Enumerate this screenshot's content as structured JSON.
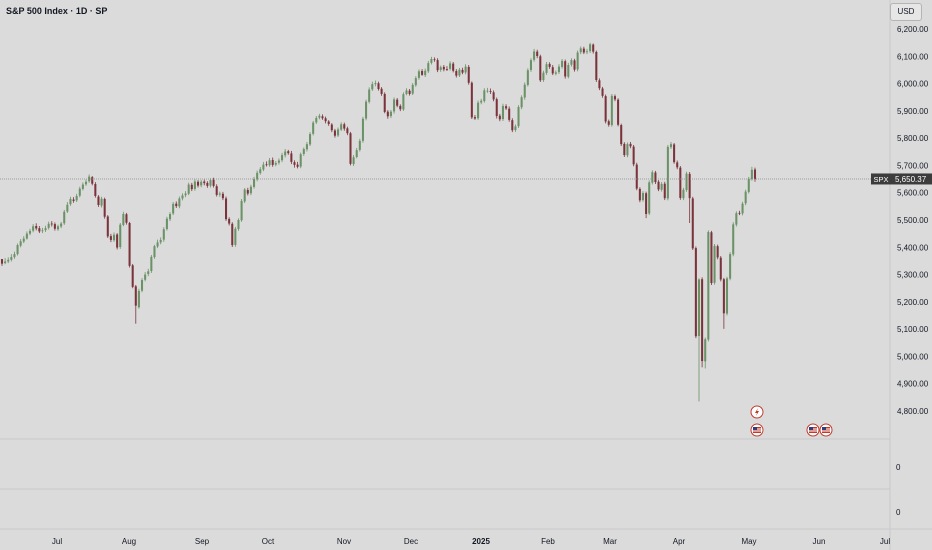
{
  "header": {
    "title": "S&P 500 Index · 1D · SP",
    "currency": "USD"
  },
  "price_tag": {
    "symbol": "SPX",
    "value": "5,650.37"
  },
  "lower_axis_labels": [
    "0",
    "0"
  ],
  "chart_data": {
    "type": "candlestick",
    "title": "S&P 500 Index · 1D · SP",
    "y_ticks": [
      "6,200.00",
      "6,100.00",
      "6,000.00",
      "5,900.00",
      "5,800.00",
      "5,700.00",
      "5,600.00",
      "5,500.00",
      "5,400.00",
      "5,300.00",
      "5,200.00",
      "5,100.00",
      "5,000.00",
      "4,900.00",
      "4,800.00"
    ],
    "y_tick_values": [
      6200,
      6100,
      6000,
      5900,
      5800,
      5700,
      5600,
      5500,
      5400,
      5300,
      5200,
      5100,
      5000,
      4900,
      4800
    ],
    "x_ticks": [
      "Jul",
      "Aug",
      "Sep",
      "Oct",
      "Nov",
      "Dec",
      "2025",
      "Feb",
      "Mar",
      "Apr",
      "May",
      "Jun",
      "Jul"
    ],
    "ylim": [
      4700,
      6270
    ],
    "last_price": 5650.37,
    "candles": [
      [
        5357,
        5340,
        5355,
        5332
      ],
      [
        5342,
        5348,
        5360,
        5338
      ],
      [
        5348,
        5354,
        5363,
        5342
      ],
      [
        5354,
        5364,
        5375,
        5348
      ],
      [
        5364,
        5375,
        5384,
        5358
      ],
      [
        5375,
        5408,
        5414,
        5370
      ],
      [
        5406,
        5422,
        5430,
        5400
      ],
      [
        5421,
        5432,
        5441,
        5415
      ],
      [
        5432,
        5450,
        5458,
        5428
      ],
      [
        5450,
        5460,
        5468,
        5444
      ],
      [
        5461,
        5477,
        5485,
        5455
      ],
      [
        5478,
        5469,
        5488,
        5462
      ],
      [
        5470,
        5458,
        5478,
        5452
      ],
      [
        5459,
        5462,
        5471,
        5452
      ],
      [
        5463,
        5470,
        5479,
        5456
      ],
      [
        5471,
        5486,
        5494,
        5465
      ],
      [
        5487,
        5484,
        5496,
        5476
      ],
      [
        5485,
        5468,
        5491,
        5461
      ],
      [
        5466,
        5477,
        5483,
        5460
      ],
      [
        5476,
        5487,
        5493,
        5470
      ],
      [
        5488,
        5530,
        5537,
        5482
      ],
      [
        5531,
        5556,
        5566,
        5526
      ],
      [
        5558,
        5577,
        5585,
        5552
      ],
      [
        5575,
        5570,
        5584,
        5563
      ],
      [
        5572,
        5588,
        5596,
        5566
      ],
      [
        5589,
        5615,
        5622,
        5583
      ],
      [
        5614,
        5630,
        5638,
        5608
      ],
      [
        5631,
        5640,
        5648,
        5625
      ],
      [
        5642,
        5659,
        5667,
        5636
      ],
      [
        5657,
        5633,
        5661,
        5627
      ],
      [
        5632,
        5588,
        5639,
        5582
      ],
      [
        5586,
        5555,
        5591,
        5548
      ],
      [
        5553,
        5578,
        5585,
        5546
      ],
      [
        5577,
        5512,
        5582,
        5505
      ],
      [
        5513,
        5440,
        5518,
        5434
      ],
      [
        5441,
        5427,
        5449,
        5419
      ],
      [
        5426,
        5446,
        5454,
        5420
      ],
      [
        5447,
        5399,
        5452,
        5392
      ],
      [
        5401,
        5483,
        5489,
        5394
      ],
      [
        5482,
        5522,
        5530,
        5477
      ],
      [
        5521,
        5490,
        5526,
        5483
      ],
      [
        5489,
        5332,
        5493,
        5326
      ],
      [
        5334,
        5255,
        5339,
        5250
      ],
      [
        5257,
        5186,
        5262,
        5120
      ],
      [
        5180,
        5240,
        5248,
        5175
      ],
      [
        5241,
        5280,
        5287,
        5235
      ],
      [
        5281,
        5300,
        5309,
        5275
      ],
      [
        5302,
        5312,
        5321,
        5294
      ],
      [
        5313,
        5365,
        5372,
        5306
      ],
      [
        5364,
        5404,
        5409,
        5358
      ],
      [
        5403,
        5418,
        5428,
        5397
      ],
      [
        5418,
        5427,
        5436,
        5411
      ],
      [
        5428,
        5466,
        5474,
        5420
      ],
      [
        5467,
        5505,
        5512,
        5461
      ],
      [
        5503,
        5522,
        5529,
        5496
      ],
      [
        5524,
        5559,
        5566,
        5518
      ],
      [
        5560,
        5551,
        5568,
        5544
      ],
      [
        5550,
        5579,
        5586,
        5543
      ],
      [
        5579,
        5590,
        5598,
        5572
      ],
      [
        5591,
        5597,
        5606,
        5584
      ],
      [
        5596,
        5630,
        5637,
        5591
      ],
      [
        5629,
        5613,
        5636,
        5606
      ],
      [
        5614,
        5641,
        5649,
        5607
      ],
      [
        5640,
        5626,
        5646,
        5619
      ],
      [
        5627,
        5640,
        5647,
        5620
      ],
      [
        5641,
        5635,
        5648,
        5627
      ],
      [
        5636,
        5625,
        5642,
        5618
      ],
      [
        5626,
        5646,
        5653,
        5619
      ],
      [
        5647,
        5625,
        5655,
        5619
      ],
      [
        5624,
        5592,
        5631,
        5586
      ],
      [
        5593,
        5597,
        5604,
        5585
      ],
      [
        5596,
        5580,
        5603,
        5573
      ],
      [
        5579,
        5503,
        5586,
        5497
      ],
      [
        5504,
        5487,
        5510,
        5480
      ],
      [
        5486,
        5408,
        5492,
        5401
      ],
      [
        5409,
        5468,
        5475,
        5402
      ],
      [
        5467,
        5500,
        5506,
        5460
      ],
      [
        5499,
        5570,
        5577,
        5493
      ],
      [
        5568,
        5612,
        5617,
        5562
      ],
      [
        5610,
        5597,
        5618,
        5590
      ],
      [
        5598,
        5622,
        5629,
        5591
      ],
      [
        5621,
        5650,
        5658,
        5615
      ],
      [
        5649,
        5673,
        5681,
        5642
      ],
      [
        5672,
        5686,
        5694,
        5666
      ],
      [
        5685,
        5703,
        5713,
        5679
      ],
      [
        5704,
        5702,
        5715,
        5696
      ],
      [
        5701,
        5719,
        5727,
        5695
      ],
      [
        5720,
        5702,
        5729,
        5695
      ],
      [
        5703,
        5709,
        5716,
        5697
      ],
      [
        5710,
        5718,
        5726,
        5703
      ],
      [
        5719,
        5738,
        5746,
        5712
      ],
      [
        5737,
        5751,
        5760,
        5729
      ],
      [
        5752,
        5745,
        5757,
        5739
      ],
      [
        5744,
        5713,
        5753,
        5705
      ],
      [
        5712,
        5702,
        5719,
        5692
      ],
      [
        5703,
        5695,
        5713,
        5689
      ],
      [
        5696,
        5741,
        5747,
        5690
      ],
      [
        5742,
        5760,
        5766,
        5735
      ],
      [
        5759,
        5778,
        5786,
        5751
      ],
      [
        5777,
        5815,
        5822,
        5771
      ],
      [
        5816,
        5857,
        5863,
        5810
      ],
      [
        5858,
        5874,
        5881,
        5852
      ],
      [
        5875,
        5882,
        5889,
        5869
      ],
      [
        5880,
        5873,
        5887,
        5867
      ],
      [
        5873,
        5862,
        5879,
        5854
      ],
      [
        5861,
        5852,
        5866,
        5845
      ],
      [
        5850,
        5829,
        5855,
        5822
      ],
      [
        5828,
        5809,
        5834,
        5802
      ],
      [
        5810,
        5832,
        5839,
        5804
      ],
      [
        5831,
        5851,
        5858,
        5826
      ],
      [
        5851,
        5835,
        5857,
        5827
      ],
      [
        5836,
        5818,
        5842,
        5811
      ],
      [
        5818,
        5706,
        5823,
        5700
      ],
      [
        5705,
        5730,
        5738,
        5698
      ],
      [
        5731,
        5756,
        5764,
        5726
      ],
      [
        5757,
        5790,
        5798,
        5751
      ],
      [
        5790,
        5871,
        5878,
        5783
      ],
      [
        5872,
        5934,
        5941,
        5865
      ],
      [
        5933,
        5978,
        5986,
        5927
      ],
      [
        5979,
        5998,
        6007,
        5973
      ],
      [
        5998,
        6002,
        6011,
        5990
      ],
      [
        6001,
        5980,
        6007,
        5974
      ],
      [
        5981,
        5962,
        5987,
        5955
      ],
      [
        5962,
        5896,
        5968,
        5891
      ],
      [
        5897,
        5880,
        5903,
        5871
      ],
      [
        5881,
        5897,
        5903,
        5874
      ],
      [
        5898,
        5942,
        5949,
        5890
      ],
      [
        5941,
        5919,
        5947,
        5913
      ],
      [
        5918,
        5906,
        5924,
        5899
      ],
      [
        5905,
        5961,
        5968,
        5900
      ],
      [
        5962,
        5975,
        5983,
        5957
      ],
      [
        5974,
        5962,
        5980,
        5956
      ],
      [
        5963,
        5995,
        6002,
        5958
      ],
      [
        5994,
        6020,
        6027,
        5988
      ],
      [
        6021,
        6045,
        6052,
        6014
      ],
      [
        6046,
        6032,
        6053,
        6028
      ],
      [
        6031,
        6047,
        6055,
        6024
      ],
      [
        6045,
        6075,
        6083,
        6039
      ],
      [
        6076,
        6090,
        6098,
        6070
      ],
      [
        6089,
        6087,
        6096,
        6080
      ],
      [
        6086,
        6049,
        6093,
        6042
      ],
      [
        6050,
        6060,
        6066,
        6043
      ],
      [
        6061,
        6052,
        6068,
        6045
      ],
      [
        6053,
        6052,
        6064,
        6046
      ],
      [
        6054,
        6074,
        6082,
        6048
      ],
      [
        6073,
        6047,
        6079,
        6041
      ],
      [
        6046,
        6029,
        6053,
        6022
      ],
      [
        6030,
        6051,
        6057,
        6024
      ],
      [
        6050,
        6040,
        6058,
        6034
      ],
      [
        6041,
        6062,
        6071,
        6034
      ],
      [
        6061,
        6003,
        6068,
        5996
      ],
      [
        6003,
        5876,
        6008,
        5870
      ],
      [
        5877,
        5872,
        5885,
        5867
      ],
      [
        5873,
        5930,
        5938,
        5867
      ],
      [
        5931,
        5937,
        5944,
        5924
      ],
      [
        5936,
        5975,
        5983,
        5930
      ],
      [
        5974,
        5974,
        5984,
        5966
      ],
      [
        5972,
        5969,
        5982,
        5962
      ],
      [
        5968,
        5942,
        5975,
        5935
      ],
      [
        5943,
        5881,
        5949,
        5872
      ],
      [
        5882,
        5869,
        5889,
        5862
      ],
      [
        5870,
        5918,
        5926,
        5863
      ],
      [
        5917,
        5909,
        5924,
        5903
      ],
      [
        5908,
        5867,
        5916,
        5860
      ],
      [
        5866,
        5829,
        5873,
        5822
      ],
      [
        5830,
        5843,
        5850,
        5823
      ],
      [
        5844,
        5914,
        5921,
        5837
      ],
      [
        5913,
        5950,
        5957,
        5906
      ],
      [
        5949,
        5996,
        6004,
        5941
      ],
      [
        5995,
        6049,
        6056,
        5989
      ],
      [
        6050,
        6086,
        6093,
        6043
      ],
      [
        6087,
        6118,
        6127,
        6080
      ],
      [
        6117,
        6101,
        6124,
        6093
      ],
      [
        6100,
        6012,
        6106,
        6006
      ],
      [
        6013,
        6040,
        6047,
        6006
      ],
      [
        6039,
        6071,
        6079,
        6032
      ],
      [
        6072,
        6061,
        6078,
        6054
      ],
      [
        6060,
        6037,
        6068,
        6031
      ],
      [
        6036,
        6041,
        6048,
        6030
      ],
      [
        6042,
        6062,
        6071,
        6035
      ],
      [
        6061,
        6083,
        6090,
        6055
      ],
      [
        6082,
        6026,
        6088,
        6018
      ],
      [
        6025,
        6068,
        6076,
        6019
      ],
      [
        6069,
        6086,
        6093,
        6062
      ],
      [
        6085,
        6051,
        6091,
        6044
      ],
      [
        6052,
        6114,
        6121,
        6045
      ],
      [
        6115,
        6129,
        6136,
        6108
      ],
      [
        6128,
        6114,
        6135,
        6108
      ],
      [
        6115,
        6118,
        6127,
        6108
      ],
      [
        6119,
        6144,
        6149,
        6112
      ],
      [
        6143,
        6117,
        6147,
        6110
      ],
      [
        6116,
        6013,
        6121,
        6006
      ],
      [
        6012,
        5983,
        6019,
        5976
      ],
      [
        5982,
        5955,
        5988,
        5948
      ],
      [
        5954,
        5861,
        5960,
        5854
      ],
      [
        5862,
        5849,
        5868,
        5842
      ],
      [
        5848,
        5955,
        5962,
        5842
      ],
      [
        5954,
        5942,
        5960,
        5935
      ],
      [
        5941,
        5849,
        5946,
        5843
      ],
      [
        5848,
        5778,
        5853,
        5771
      ],
      [
        5779,
        5738,
        5785,
        5731
      ],
      [
        5737,
        5778,
        5784,
        5730
      ],
      [
        5779,
        5770,
        5786,
        5763
      ],
      [
        5769,
        5704,
        5775,
        5697
      ],
      [
        5703,
        5615,
        5710,
        5609
      ],
      [
        5614,
        5572,
        5620,
        5565
      ],
      [
        5573,
        5599,
        5606,
        5567
      ],
      [
        5598,
        5522,
        5604,
        5507
      ],
      [
        5524,
        5638,
        5645,
        5518
      ],
      [
        5637,
        5675,
        5682,
        5630
      ],
      [
        5674,
        5639,
        5680,
        5632
      ],
      [
        5640,
        5612,
        5646,
        5606
      ],
      [
        5611,
        5632,
        5639,
        5604
      ],
      [
        5633,
        5580,
        5640,
        5573
      ],
      [
        5579,
        5768,
        5775,
        5572
      ],
      [
        5767,
        5778,
        5786,
        5760
      ],
      [
        5777,
        5712,
        5782,
        5706
      ],
      [
        5711,
        5693,
        5718,
        5686
      ],
      [
        5692,
        5581,
        5698,
        5574
      ],
      [
        5580,
        5611,
        5618,
        5573
      ],
      [
        5610,
        5670,
        5677,
        5603
      ],
      [
        5669,
        5580,
        5676,
        5489
      ],
      [
        5579,
        5396,
        5585,
        5390
      ],
      [
        5397,
        5074,
        5403,
        5067
      ],
      [
        5075,
        5282,
        5286,
        4835
      ],
      [
        5283,
        4983,
        5290,
        4960
      ],
      [
        4982,
        5063,
        5069,
        4956
      ],
      [
        5062,
        5456,
        5462,
        5055
      ],
      [
        5455,
        5269,
        5460,
        5262
      ],
      [
        5270,
        5405,
        5412,
        5263
      ],
      [
        5404,
        5363,
        5410,
        5356
      ],
      [
        5362,
        5282,
        5368,
        5275
      ],
      [
        5283,
        5158,
        5288,
        5101
      ],
      [
        5157,
        5286,
        5292,
        5150
      ],
      [
        5285,
        5375,
        5382,
        5279
      ],
      [
        5374,
        5484,
        5492,
        5367
      ],
      [
        5483,
        5525,
        5532,
        5476
      ],
      [
        5526,
        5525,
        5534,
        5518
      ],
      [
        5524,
        5560,
        5567,
        5517
      ],
      [
        5561,
        5604,
        5611,
        5554
      ],
      [
        5603,
        5651,
        5658,
        5597
      ],
      [
        5650,
        5684,
        5695,
        5644
      ],
      [
        5685,
        5650,
        5692,
        5640
      ]
    ]
  },
  "events": {
    "markers": [
      {
        "icon": "bolt-icon"
      },
      {
        "icon": "us-flag-icon"
      },
      {
        "icon": "us-flag-icon"
      },
      {
        "icon": "us-flag-icon"
      }
    ]
  },
  "colors": {
    "up": "#6a9266",
    "down": "#7b333b",
    "background": "#dbdbdb",
    "price_tag_bg": "#3c3c3c",
    "event_red": "#c0392b"
  }
}
